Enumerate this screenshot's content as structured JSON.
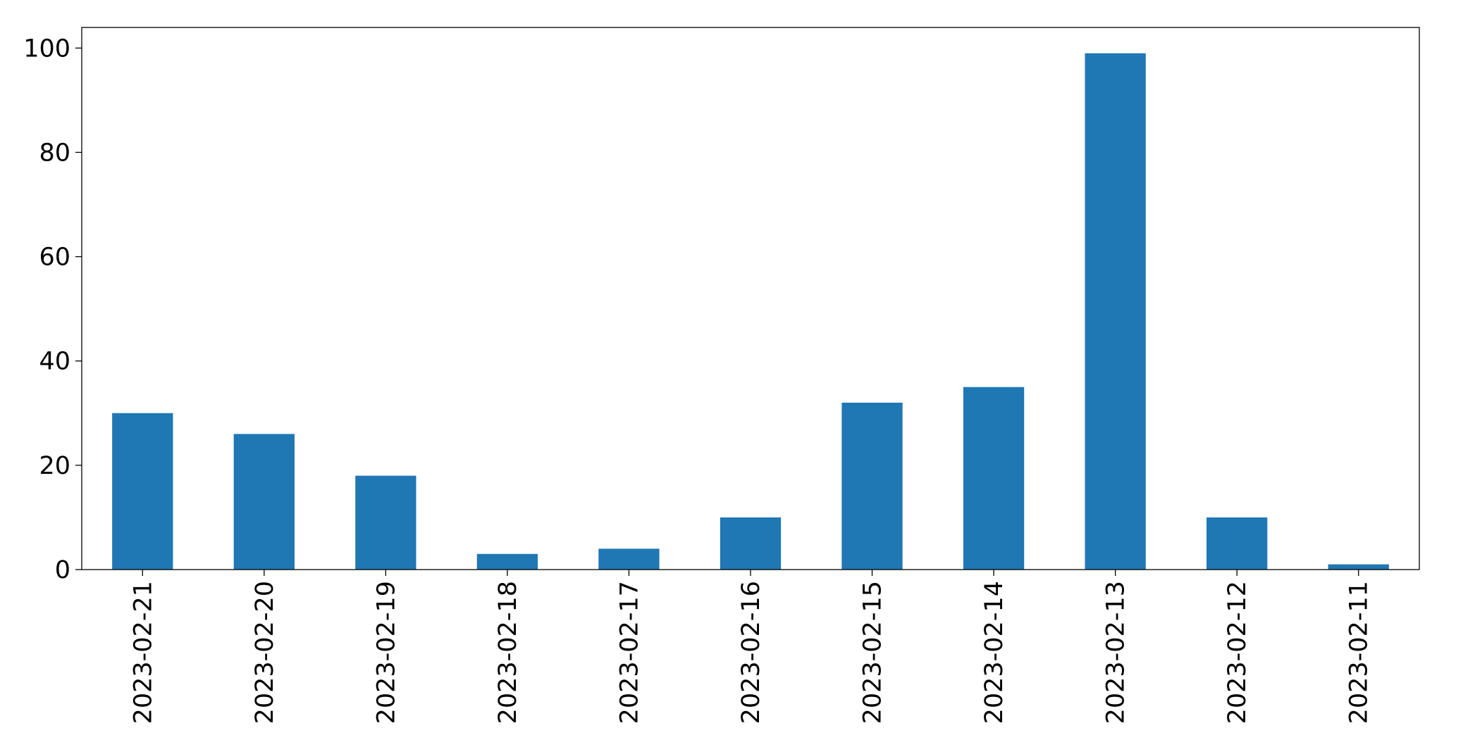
{
  "chart_data": {
    "type": "bar",
    "categories": [
      "2023-02-21",
      "2023-02-20",
      "2023-02-19",
      "2023-02-18",
      "2023-02-17",
      "2023-02-16",
      "2023-02-15",
      "2023-02-14",
      "2023-02-13",
      "2023-02-12",
      "2023-02-11"
    ],
    "values": [
      30,
      26,
      18,
      3,
      4,
      10,
      32,
      35,
      99,
      10,
      1
    ],
    "color": "#1f77b4",
    "ylim": [
      0,
      103.95
    ],
    "yticks": [
      0,
      20,
      40,
      60,
      80,
      100
    ],
    "grid": false
  }
}
